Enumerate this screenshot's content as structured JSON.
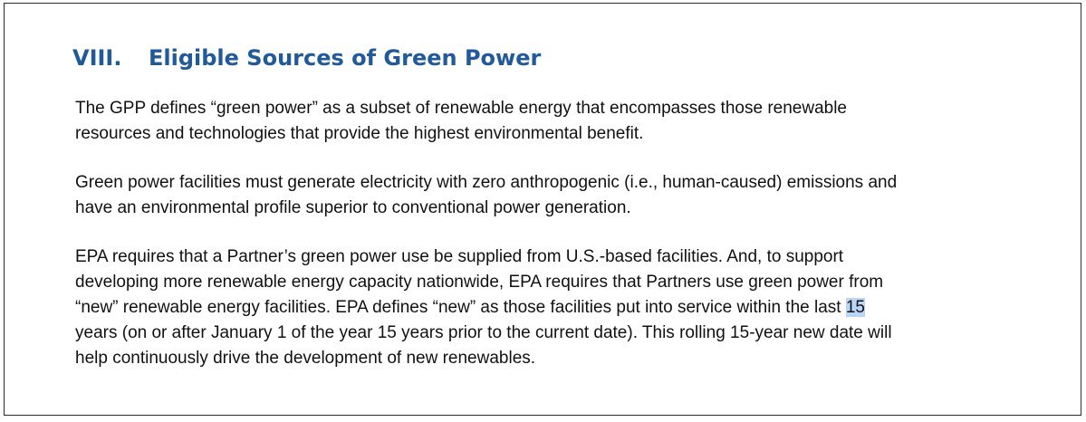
{
  "section": {
    "number": "VIII.",
    "title": "Eligible Sources of Green Power"
  },
  "paragraphs": {
    "p1": {
      "line1": "The GPP defines “green power” as a subset of renewable energy that encompasses those renewable",
      "line2": "resources and technologies that provide the highest environmental benefit."
    },
    "p2": {
      "line1": "Green power facilities must generate electricity with zero anthropogenic (i.e., human-caused) emissions and",
      "line2": "have an environmental profile superior to conventional power generation."
    },
    "p3": {
      "line1": "EPA requires that a Partner’s green power use be supplied from U.S.-based facilities. And, to support",
      "line2": "developing more renewable energy capacity nationwide, EPA requires that Partners use green power from",
      "line3": "“new” renewable energy facilities. EPA defines “new” as those facilities put into service within the last ",
      "line3_highlight": "15",
      "line4": "years (on or after January 1 of the year 15 years prior to the current date). This rolling 15-year new date will",
      "line5": "help continuously drive the development of new renewables."
    }
  },
  "colors": {
    "heading": "#1f5aa0",
    "selection_highlight": "#b9d5f7",
    "body_text": "#111111"
  }
}
